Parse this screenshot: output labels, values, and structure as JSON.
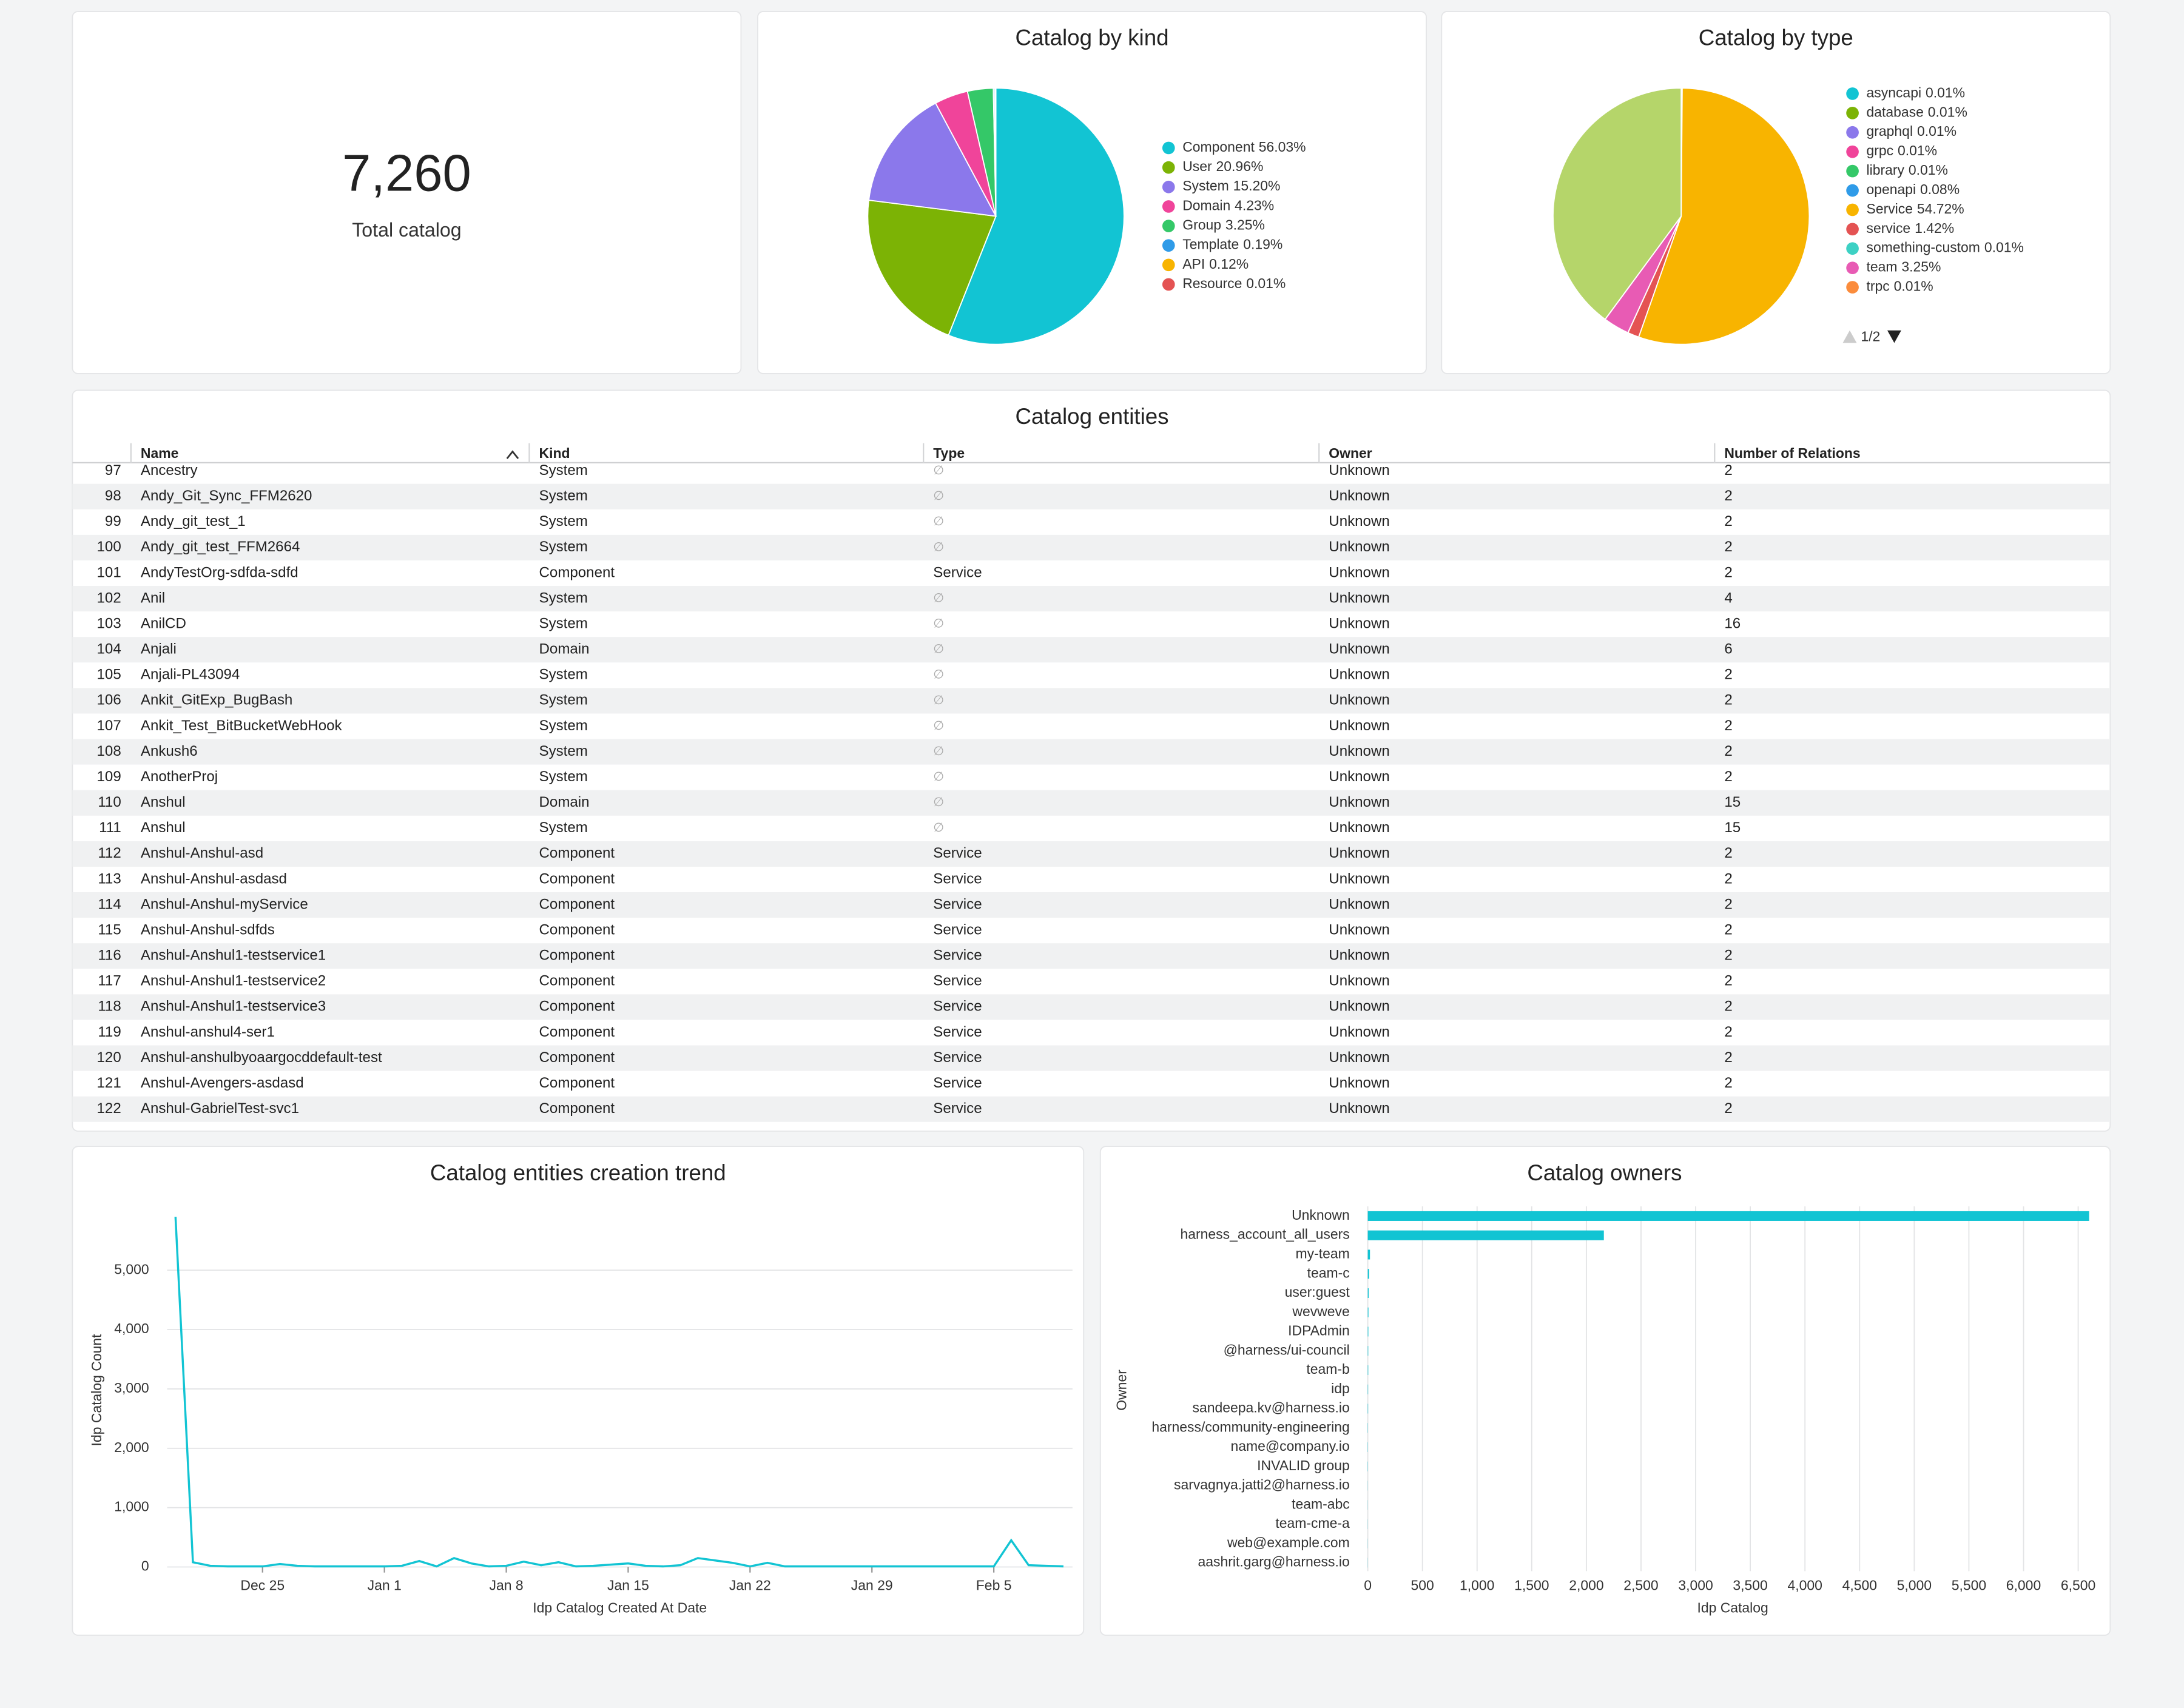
{
  "kpi": {
    "value": "7,260",
    "label": "Total catalog"
  },
  "chart_data": [
    {
      "type": "pie",
      "title": "Catalog by kind",
      "categories": [
        "Component",
        "User",
        "System",
        "Domain",
        "Group",
        "Template",
        "API",
        "Resource"
      ],
      "values": [
        56.03,
        20.96,
        15.2,
        4.23,
        3.25,
        0.19,
        0.12,
        0.01
      ],
      "value_labels": [
        "56.03%",
        "20.96%",
        "15.20%",
        "4.23%",
        "3.25%",
        "0.19%",
        "0.12%",
        "0.01%"
      ],
      "colors": [
        "#12c4d3",
        "#7cb305",
        "#8b78eb",
        "#f0449a",
        "#34c868",
        "#2f9be8",
        "#f8b400",
        "#e45353"
      ]
    },
    {
      "type": "pie",
      "title": "Catalog by type",
      "categories": [
        "asyncapi",
        "database",
        "graphql",
        "grpc",
        "library",
        "openapi",
        "Service",
        "service",
        "something-custom",
        "team",
        "trpc",
        null
      ],
      "values": [
        0.01,
        0.01,
        0.01,
        0.01,
        0.01,
        0.08,
        54.72,
        1.42,
        0.01,
        3.25,
        0.01,
        39.5
      ],
      "value_labels": [
        "0.01%",
        "0.01%",
        "0.01%",
        "0.01%",
        "0.01%",
        "0.08%",
        "54.72%",
        "1.42%",
        "0.01%",
        "3.25%",
        "0.01%",
        null
      ],
      "colors": [
        "#12c4d3",
        "#7cb305",
        "#8b78eb",
        "#f0449a",
        "#34c868",
        "#2f9be8",
        "#f8b400",
        "#e45353",
        "#3dd1c4",
        "#e85bb4",
        "#fb8c3c",
        "#b5d56a"
      ],
      "page_label": "1/2"
    },
    {
      "type": "line",
      "title": "Catalog entities creation trend",
      "x_label": "Idp Catalog Created At Date",
      "y_label": "Idp Catalog Count",
      "color": "#12c4d3",
      "x": [
        "Dec 20",
        "Dec 21",
        "Dec 22",
        "Dec 23",
        "Dec 24",
        "Dec 25",
        "Dec 26",
        "Dec 27",
        "Dec 28",
        "Dec 29",
        "Dec 30",
        "Dec 31",
        "Jan 1",
        "Jan 2",
        "Jan 3",
        "Jan 4",
        "Jan 5",
        "Jan 6",
        "Jan 7",
        "Jan 8",
        "Jan 9",
        "Jan 10",
        "Jan 11",
        "Jan 12",
        "Jan 13",
        "Jan 14",
        "Jan 15",
        "Jan 16",
        "Jan 17",
        "Jan 18",
        "Jan 19",
        "Jan 20",
        "Jan 21",
        "Jan 22",
        "Jan 23",
        "Jan 24",
        "Jan 25",
        "Jan 26",
        "Jan 27",
        "Jan 28",
        "Jan 29",
        "Jan 30",
        "Jan 31",
        "Feb 1",
        "Feb 2",
        "Feb 3",
        "Feb 4",
        "Feb 5",
        "Feb 6",
        "Feb 7",
        "Feb 8",
        "Feb 9"
      ],
      "values": [
        5900,
        80,
        20,
        10,
        10,
        10,
        50,
        20,
        10,
        10,
        10,
        10,
        10,
        20,
        100,
        10,
        150,
        60,
        10,
        20,
        90,
        30,
        80,
        10,
        20,
        40,
        60,
        20,
        10,
        30,
        150,
        110,
        70,
        10,
        70,
        10,
        10,
        10,
        10,
        10,
        10,
        10,
        10,
        10,
        10,
        10,
        10,
        10,
        450,
        30,
        20,
        10
      ],
      "xticks": [
        "Dec 25",
        "Jan 1",
        "Jan 8",
        "Jan 15",
        "Jan 22",
        "Jan 29",
        "Feb 5"
      ],
      "ylim": [
        0,
        6100
      ],
      "yticks": [
        0,
        {
          "value": 1000,
          "label": "1,000"
        },
        {
          "value": 2000,
          "label": "2,000"
        },
        {
          "value": 3000,
          "label": "3,000"
        },
        {
          "value": 4000,
          "label": "4,000"
        },
        {
          "value": 5000,
          "label": "5,000"
        }
      ],
      "grid": true
    },
    {
      "type": "bar",
      "orientation": "horizontal",
      "title": "Catalog owners",
      "x_label": "Idp Catalog",
      "y_label": "Owner",
      "color": "#12c4d3",
      "categories": [
        "Unknown",
        "harness_account_all_users",
        "my-team",
        "team-c",
        "user:guest",
        "wevweve",
        "IDPAdmin",
        "@harness/ui-council",
        "team-b",
        "idp",
        "sandeepa.kv@harness.io",
        "harness/community-engineering",
        "name@company.io",
        "INVALID group",
        "sarvagnya.jatti2@harness.io",
        "team-abc",
        "team-cme-a",
        "web@example.com",
        "aashrit.garg@harness.io"
      ],
      "values": [
        6600,
        2160,
        20,
        12,
        8,
        6,
        5,
        4,
        4,
        3,
        3,
        2,
        2,
        2,
        1,
        1,
        1,
        1,
        1
      ],
      "xlim": [
        0,
        6650
      ],
      "xticks": [
        0,
        500,
        {
          "value": 1000,
          "label": "1,000"
        },
        {
          "value": 1500,
          "label": "1,500"
        },
        {
          "value": 2000,
          "label": "2,000"
        },
        {
          "value": 2500,
          "label": "2,500"
        },
        {
          "value": 3000,
          "label": "3,000"
        },
        {
          "value": 3500,
          "label": "3,500"
        },
        {
          "value": 4000,
          "label": "4,000"
        },
        {
          "value": 4500,
          "label": "4,500"
        },
        {
          "value": 5000,
          "label": "5,000"
        },
        {
          "value": 5500,
          "label": "5,500"
        },
        {
          "value": 6000,
          "label": "6,000"
        },
        {
          "value": 6500,
          "label": "6,500"
        }
      ],
      "grid": true
    }
  ],
  "table": {
    "title": "Catalog entities",
    "columns": [
      "Name",
      "Kind",
      "Type",
      "Owner",
      "Number of Relations"
    ],
    "rows": [
      [
        97,
        "Ancestry",
        "System",
        "∅",
        "Unknown",
        2
      ],
      [
        98,
        "Andy_Git_Sync_FFM2620",
        "System",
        "∅",
        "Unknown",
        2
      ],
      [
        99,
        "Andy_git_test_1",
        "System",
        "∅",
        "Unknown",
        2
      ],
      [
        100,
        "Andy_git_test_FFM2664",
        "System",
        "∅",
        "Unknown",
        2
      ],
      [
        101,
        "AndyTestOrg-sdfda-sdfd",
        "Component",
        "Service",
        "Unknown",
        2
      ],
      [
        102,
        "Anil",
        "System",
        "∅",
        "Unknown",
        4
      ],
      [
        103,
        "AnilCD",
        "System",
        "∅",
        "Unknown",
        16
      ],
      [
        104,
        "Anjali",
        "Domain",
        "∅",
        "Unknown",
        6
      ],
      [
        105,
        "Anjali-PL43094",
        "System",
        "∅",
        "Unknown",
        2
      ],
      [
        106,
        "Ankit_GitExp_BugBash",
        "System",
        "∅",
        "Unknown",
        2
      ],
      [
        107,
        "Ankit_Test_BitBucketWebHook",
        "System",
        "∅",
        "Unknown",
        2
      ],
      [
        108,
        "Ankush6",
        "System",
        "∅",
        "Unknown",
        2
      ],
      [
        109,
        "AnotherProj",
        "System",
        "∅",
        "Unknown",
        2
      ],
      [
        110,
        "Anshul",
        "Domain",
        "∅",
        "Unknown",
        15
      ],
      [
        111,
        "Anshul",
        "System",
        "∅",
        "Unknown",
        15
      ],
      [
        112,
        "Anshul-Anshul-asd",
        "Component",
        "Service",
        "Unknown",
        2
      ],
      [
        113,
        "Anshul-Anshul-asdasd",
        "Component",
        "Service",
        "Unknown",
        2
      ],
      [
        114,
        "Anshul-Anshul-myService",
        "Component",
        "Service",
        "Unknown",
        2
      ],
      [
        115,
        "Anshul-Anshul-sdfds",
        "Component",
        "Service",
        "Unknown",
        2
      ],
      [
        116,
        "Anshul-Anshul1-testservice1",
        "Component",
        "Service",
        "Unknown",
        2
      ],
      [
        117,
        "Anshul-Anshul1-testservice2",
        "Component",
        "Service",
        "Unknown",
        2
      ],
      [
        118,
        "Anshul-Anshul1-testservice3",
        "Component",
        "Service",
        "Unknown",
        2
      ],
      [
        119,
        "Anshul-anshul4-ser1",
        "Component",
        "Service",
        "Unknown",
        2
      ],
      [
        120,
        "Anshul-anshulbyoaargocddefault-test",
        "Component",
        "Service",
        "Unknown",
        2
      ],
      [
        121,
        "Anshul-Avengers-asdasd",
        "Component",
        "Service",
        "Unknown",
        2
      ],
      [
        122,
        "Anshul-GabrielTest-svc1",
        "Component",
        "Service",
        "Unknown",
        2
      ]
    ]
  }
}
